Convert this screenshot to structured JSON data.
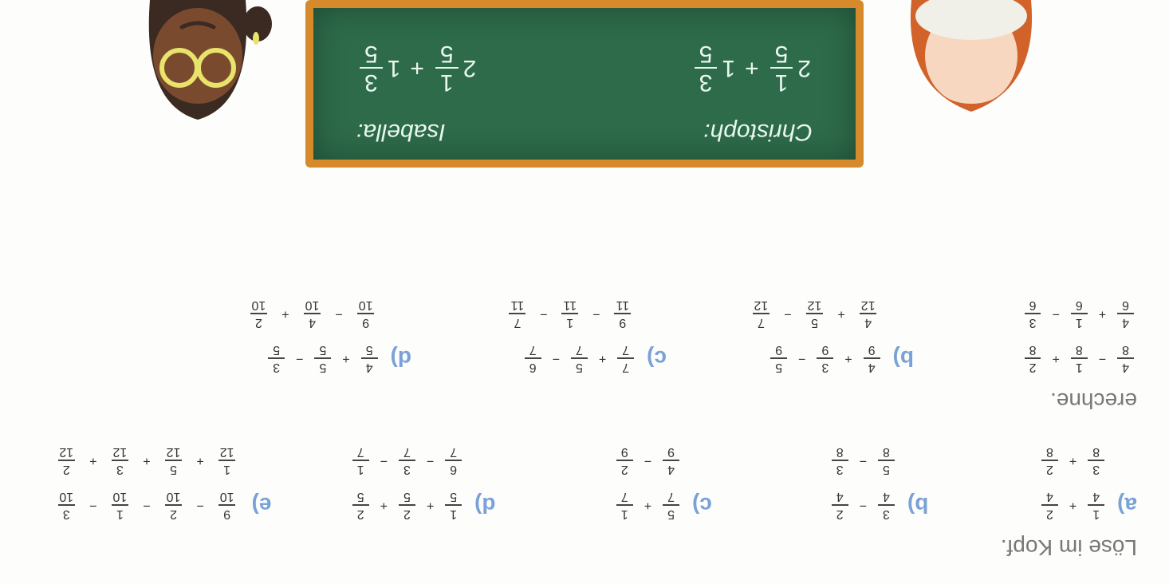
{
  "exercise1": {
    "title": "Löse im Kopf.",
    "columns": {
      "a": {
        "label": "a)",
        "line1": [
          "1/4",
          "+",
          "2/4"
        ],
        "line2": [
          "3/8",
          "+",
          "2/8"
        ]
      },
      "b": {
        "label": "b)",
        "line1": [
          "3/4",
          "−",
          "2/4"
        ],
        "line2": [
          "5/8",
          "−",
          "3/8"
        ]
      },
      "c": {
        "label": "c)",
        "line1": [
          "5/7",
          "+",
          "1/7"
        ],
        "line2": [
          "4/9",
          "−",
          "2/9"
        ]
      },
      "d": {
        "label": "d)",
        "line1": [
          "1/5",
          "+",
          "2/5",
          "+",
          "2/5"
        ],
        "line2": [
          "6/7",
          "−",
          "3/7",
          "−",
          "1/7"
        ]
      },
      "e": {
        "label": "e)",
        "line1": [
          "9/10",
          "−",
          "2/10",
          "−",
          "1/10",
          "−",
          "3/10"
        ],
        "line2": [
          "1/12",
          "+",
          "5/12",
          "+",
          "3/12",
          "+",
          "2/12"
        ]
      }
    }
  },
  "exercise2": {
    "title": "erechne.",
    "columns": {
      "a": {
        "label": "",
        "line1": [
          "4/8",
          "−",
          "1/8",
          "+",
          "2/8"
        ],
        "line2": [
          "4/6",
          "+",
          "1/6",
          "−",
          "3/6"
        ]
      },
      "b": {
        "label": "b)",
        "line1": [
          "4/9",
          "+",
          "3/9",
          "−",
          "5/9"
        ],
        "line2": [
          "4/12",
          "+",
          "5/12",
          "−",
          "7/12"
        ]
      },
      "c": {
        "label": "c)",
        "line1": [
          "7/7",
          "+",
          "5/7",
          "−",
          "6/7"
        ],
        "line2": [
          "9/11",
          "−",
          "1/11",
          "−",
          "7/11"
        ]
      },
      "d": {
        "label": "d)",
        "line1": [
          "4/5",
          "+",
          "5/5",
          "−",
          "3/5"
        ],
        "line2": [
          "9/10",
          "−",
          "4/10",
          "+",
          "2/10"
        ]
      }
    }
  },
  "chalkboard": {
    "left_name": "Christoph:",
    "right_name": "Isabella:",
    "left_expr": {
      "w1": "2",
      "f1": "1/5",
      "op": "+",
      "w2": "1",
      "f2": "3/5"
    },
    "right_expr": {
      "w1": "2",
      "f1": "1/5",
      "op": "+",
      "w2": "1",
      "f2": "3/5"
    }
  },
  "colors": {
    "label": "#7aa2d6",
    "text": "#555",
    "board_bg": "#2d6b4a",
    "board_frame": "#d68a2b",
    "chalk": "#e9f7ef",
    "char_left_hair": "#d0622a",
    "char_left_skin": "#f7d7c0",
    "char_right_hair": "#3b2a22",
    "char_right_skin": "#7a4a2f",
    "glasses": "#e8e36a"
  }
}
